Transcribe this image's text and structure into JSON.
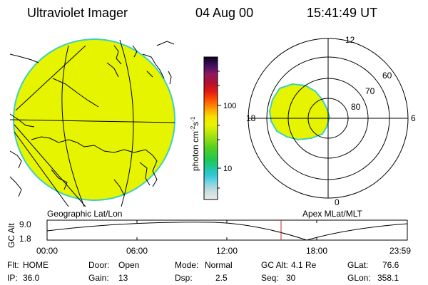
{
  "header": {
    "title": "Ultraviolet Imager",
    "date": "04 Aug 00",
    "time": "15:41:49 UT"
  },
  "colorbar": {
    "unit_label": "photon cm",
    "unit_exp1": "-2",
    "unit_mid": "s",
    "unit_exp2": "-1",
    "tick_100": "100",
    "tick_10": "10"
  },
  "geo_panel": {
    "label": "Geographic Lat/Lon"
  },
  "polar_panel": {
    "label": "Apex MLat/MLT",
    "mlt_12": "12",
    "mlt_18": "18",
    "mlt_6": "6",
    "mlt_0": "0",
    "lat_60": "60",
    "lat_70": "70",
    "lat_80": "80"
  },
  "altitude_plot": {
    "ylabel": "GC Alt",
    "yticks": [
      "9.0",
      "1.8"
    ],
    "xticks": [
      "00:00",
      "06:00",
      "12:00",
      "18:00",
      "23:59"
    ]
  },
  "info": {
    "r1": [
      {
        "k": "Flt:",
        "v": "HOME"
      },
      {
        "k": "Door:",
        "v": "Open"
      },
      {
        "k": "Mode:",
        "v": "Normal"
      },
      {
        "k": "GC Alt:",
        "v": "4.1 Re"
      },
      {
        "k": "GLat:",
        "v": "76.6"
      }
    ],
    "r2": [
      {
        "k": "IP:",
        "v": "36.0"
      },
      {
        "k": "Gain:",
        "v": "13"
      },
      {
        "k": "Dsp:",
        "v": "2.5"
      },
      {
        "k": "Seq:",
        "v": "30"
      },
      {
        "k": "GLon:",
        "v": "358.1"
      }
    ]
  },
  "colors": {
    "emission": "#e6f400",
    "limb": "#3cd0c0",
    "marker": "#c82020"
  }
}
